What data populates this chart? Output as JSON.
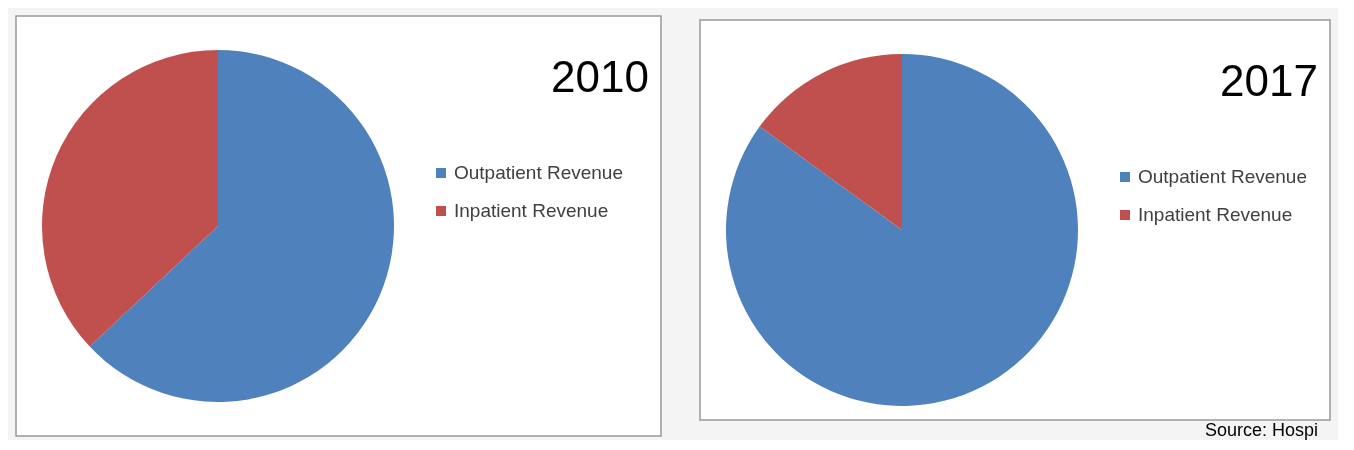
{
  "chart_data": [
    {
      "type": "pie",
      "title": "2010",
      "categories": [
        "Outpatient Revenue",
        "Inpatient Revenue"
      ],
      "values": [
        63,
        37
      ],
      "colors": [
        "#4f81bd",
        "#c0504d"
      ],
      "legend": "right"
    },
    {
      "type": "pie",
      "title": "2017",
      "categories": [
        "Outpatient Revenue",
        "Inpatient Revenue"
      ],
      "values": [
        85,
        15
      ],
      "colors": [
        "#4f81bd",
        "#c0504d"
      ],
      "legend": "right",
      "annotations": [
        "Source: Hospi"
      ]
    }
  ]
}
